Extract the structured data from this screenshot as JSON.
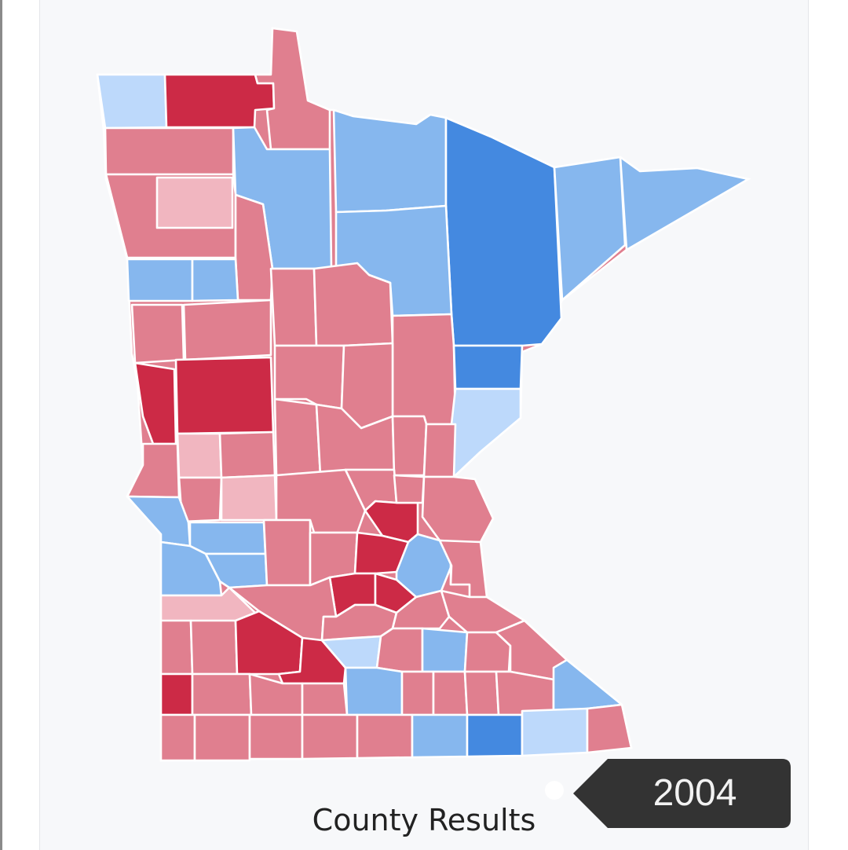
{
  "caption": "County Results",
  "year": "2004",
  "colors": {
    "rep_strong": "#cc2a46",
    "rep": "#e07f8f",
    "rep_lean": "#f1b6c0",
    "dem_lean": "#bdd9fb",
    "dem": "#86b7ee",
    "dem_strong": "#4489e0",
    "background": "#f7f8fa",
    "badge": "#333333"
  },
  "icons": {
    "slider_handle": "circle-dot",
    "year_tooltip": "left-pointing-tag"
  }
}
